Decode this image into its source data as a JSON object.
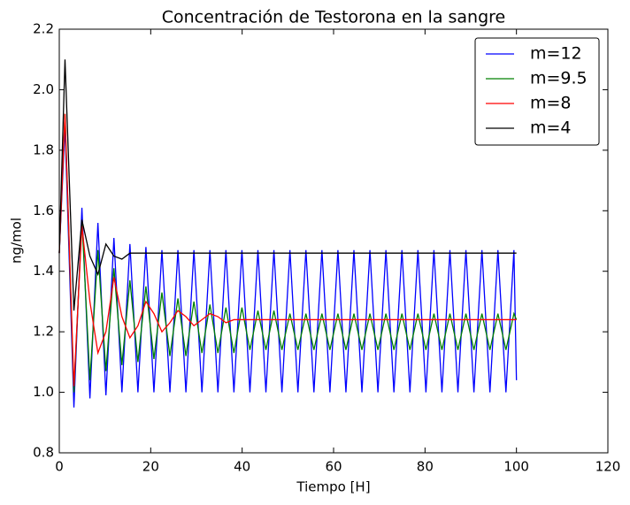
{
  "chart_data": {
    "type": "line",
    "title": "Concentración de Testorona en la sangre",
    "xlabel": "Tiempo [H]",
    "ylabel": "ng/mol",
    "x": [
      0,
      1.25,
      3.2,
      4.95,
      6.7,
      8.45,
      10.2,
      11.95,
      13.7,
      15.45,
      17.2,
      18.95,
      20.7,
      22.45,
      24.2,
      25.95,
      27.7,
      29.45,
      31.2,
      32.95,
      34.7,
      36.45,
      38.2,
      39.95,
      41.7,
      43.45,
      45.2,
      46.95,
      48.7,
      50.45,
      52.2,
      53.95,
      55.7,
      57.45,
      59.2,
      60.95,
      62.7,
      64.45,
      66.2,
      67.95,
      69.7,
      71.45,
      73.2,
      74.95,
      76.7,
      78.45,
      80.2,
      81.95,
      83.7,
      85.45,
      87.2,
      88.95,
      90.7,
      92.45,
      94.2,
      95.95,
      97.7,
      99.45,
      100
    ],
    "series": [
      {
        "name": "m=12",
        "color": "#0000ff",
        "values": [
          1.46,
          1.88,
          0.95,
          1.61,
          0.98,
          1.56,
          0.99,
          1.51,
          1.0,
          1.49,
          1.0,
          1.48,
          1.0,
          1.47,
          1.0,
          1.47,
          1.0,
          1.47,
          1.0,
          1.47,
          1.0,
          1.47,
          1.0,
          1.47,
          1.0,
          1.47,
          1.0,
          1.47,
          1.0,
          1.47,
          1.0,
          1.47,
          1.0,
          1.47,
          1.0,
          1.47,
          1.0,
          1.47,
          1.0,
          1.47,
          1.0,
          1.47,
          1.0,
          1.47,
          1.0,
          1.47,
          1.0,
          1.47,
          1.0,
          1.47,
          1.0,
          1.47,
          1.0,
          1.47,
          1.0,
          1.47,
          1.0,
          1.47,
          1.04
        ]
      },
      {
        "name": "m=9.5",
        "color": "#008000",
        "values": [
          1.46,
          1.92,
          1.0,
          1.57,
          1.04,
          1.47,
          1.07,
          1.41,
          1.09,
          1.37,
          1.1,
          1.35,
          1.11,
          1.33,
          1.12,
          1.31,
          1.12,
          1.3,
          1.13,
          1.29,
          1.13,
          1.28,
          1.13,
          1.28,
          1.14,
          1.27,
          1.14,
          1.27,
          1.14,
          1.26,
          1.14,
          1.26,
          1.14,
          1.26,
          1.14,
          1.26,
          1.14,
          1.26,
          1.14,
          1.26,
          1.14,
          1.26,
          1.14,
          1.26,
          1.14,
          1.26,
          1.14,
          1.26,
          1.14,
          1.26,
          1.14,
          1.26,
          1.14,
          1.26,
          1.14,
          1.26,
          1.14,
          1.26,
          1.24
        ]
      },
      {
        "name": "m=8",
        "color": "#ff0000",
        "values": [
          1.46,
          1.92,
          1.02,
          1.55,
          1.3,
          1.13,
          1.2,
          1.38,
          1.25,
          1.18,
          1.22,
          1.3,
          1.26,
          1.2,
          1.23,
          1.27,
          1.25,
          1.22,
          1.24,
          1.26,
          1.25,
          1.23,
          1.24,
          1.24,
          1.24,
          1.24,
          1.24,
          1.24,
          1.24,
          1.24,
          1.24,
          1.24,
          1.24,
          1.24,
          1.24,
          1.24,
          1.24,
          1.24,
          1.24,
          1.24,
          1.24,
          1.24,
          1.24,
          1.24,
          1.24,
          1.24,
          1.24,
          1.24,
          1.24,
          1.24,
          1.24,
          1.24,
          1.24,
          1.24,
          1.24,
          1.24,
          1.24,
          1.24,
          1.24
        ]
      },
      {
        "name": "m=4",
        "color": "#000000",
        "values": [
          1.46,
          2.1,
          1.27,
          1.57,
          1.45,
          1.39,
          1.49,
          1.45,
          1.44,
          1.46,
          1.46,
          1.46,
          1.46,
          1.46,
          1.46,
          1.46,
          1.46,
          1.46,
          1.46,
          1.46,
          1.46,
          1.46,
          1.46,
          1.46,
          1.46,
          1.46,
          1.46,
          1.46,
          1.46,
          1.46,
          1.46,
          1.46,
          1.46,
          1.46,
          1.46,
          1.46,
          1.46,
          1.46,
          1.46,
          1.46,
          1.46,
          1.46,
          1.46,
          1.46,
          1.46,
          1.46,
          1.46,
          1.46,
          1.46,
          1.46,
          1.46,
          1.46,
          1.46,
          1.46,
          1.46,
          1.46,
          1.46,
          1.46,
          1.46
        ]
      }
    ],
    "xlim": [
      0,
      120
    ],
    "xticks": [
      0,
      20,
      40,
      60,
      80,
      100,
      120
    ],
    "ylim": [
      0.8,
      2.2
    ],
    "yticks": [
      0.8,
      {
        "value": 1,
        "label": "1.0"
      },
      1.2,
      1.4,
      1.6,
      1.8,
      {
        "value": 2,
        "label": "2.0"
      },
      2.2
    ],
    "grid": false,
    "legend": "upper right"
  }
}
